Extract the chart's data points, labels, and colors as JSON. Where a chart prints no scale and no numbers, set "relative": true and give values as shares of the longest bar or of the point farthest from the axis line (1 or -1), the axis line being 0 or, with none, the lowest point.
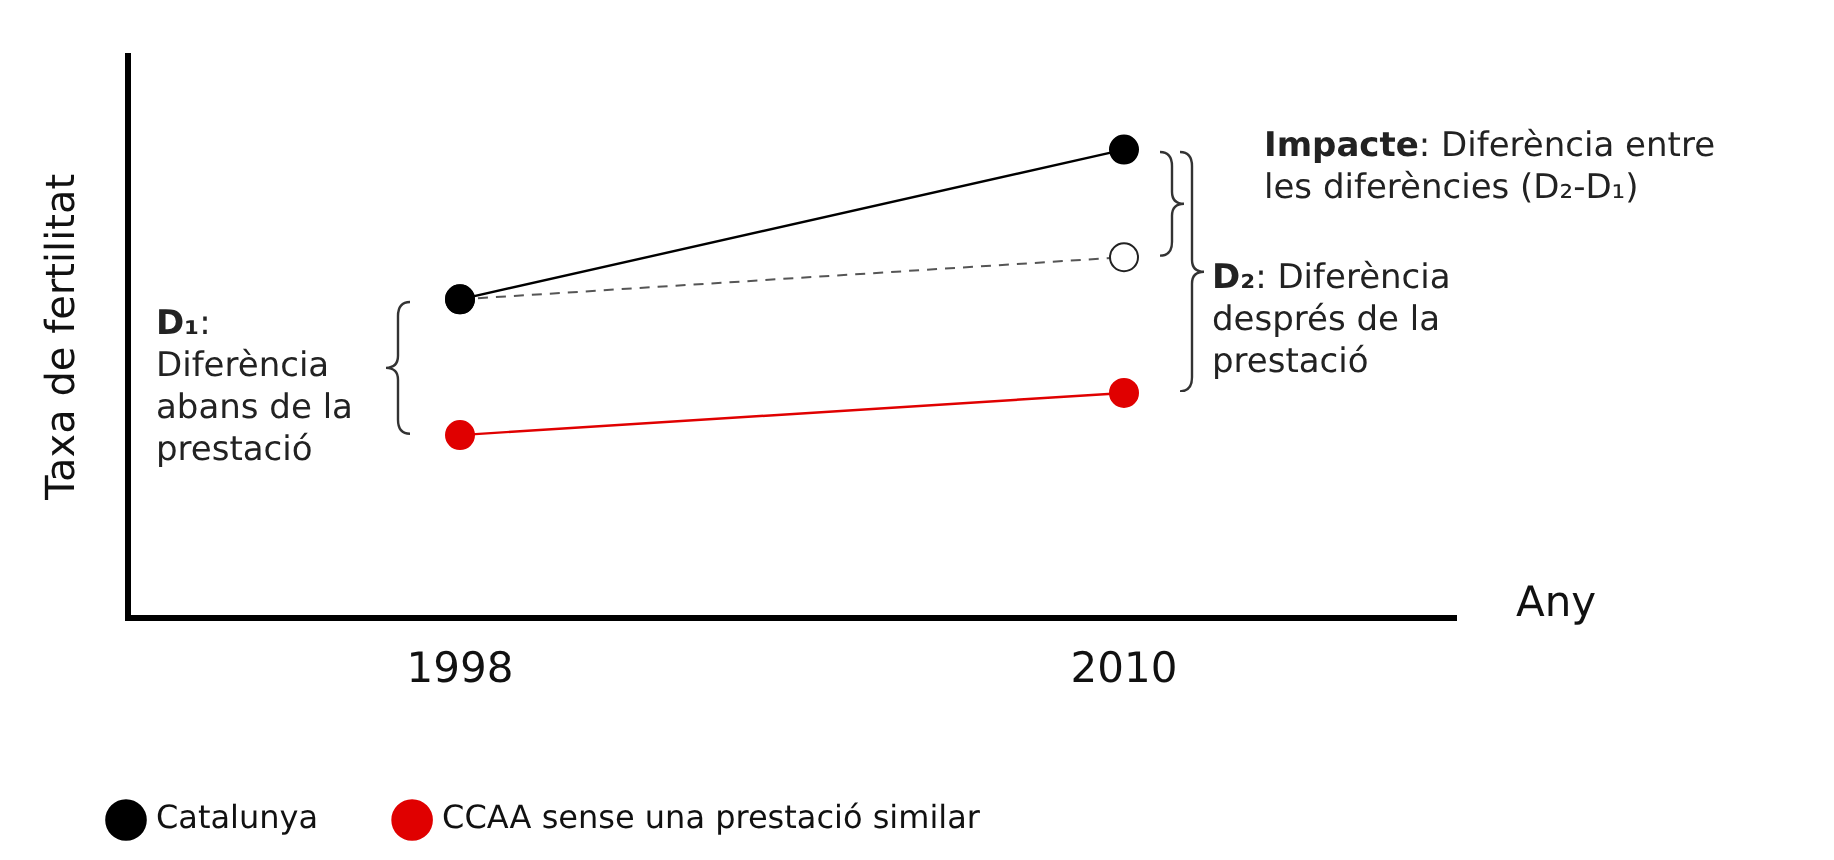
{
  "chart_data": {
    "type": "line",
    "relative": true,
    "xlabel": "Any",
    "ylabel": "Taxa de fertilitat",
    "categories": [
      "1998",
      "2010"
    ],
    "series": [
      {
        "name": "Catalunya",
        "color": "#000000",
        "values": [
          0.68,
          1
        ]
      },
      {
        "color": "#555555",
        "values": [
          0.68,
          0.77
        ],
        "line_style": "dashed"
      },
      {
        "name": "CCAA sense una prestació similar",
        "color": "#e00000",
        "values": [
          0.39,
          0.48
        ]
      }
    ],
    "annotations": [
      "D₁: Diferència abans de la prestació",
      "Impacte: Diferència entre les diferències (D₂-D₁)",
      "D₂: Diferència després de la prestació"
    ],
    "marker": "circle",
    "line_style": "solid",
    "grid": false,
    "legend": "bottom",
    "tick_labels": "x"
  }
}
